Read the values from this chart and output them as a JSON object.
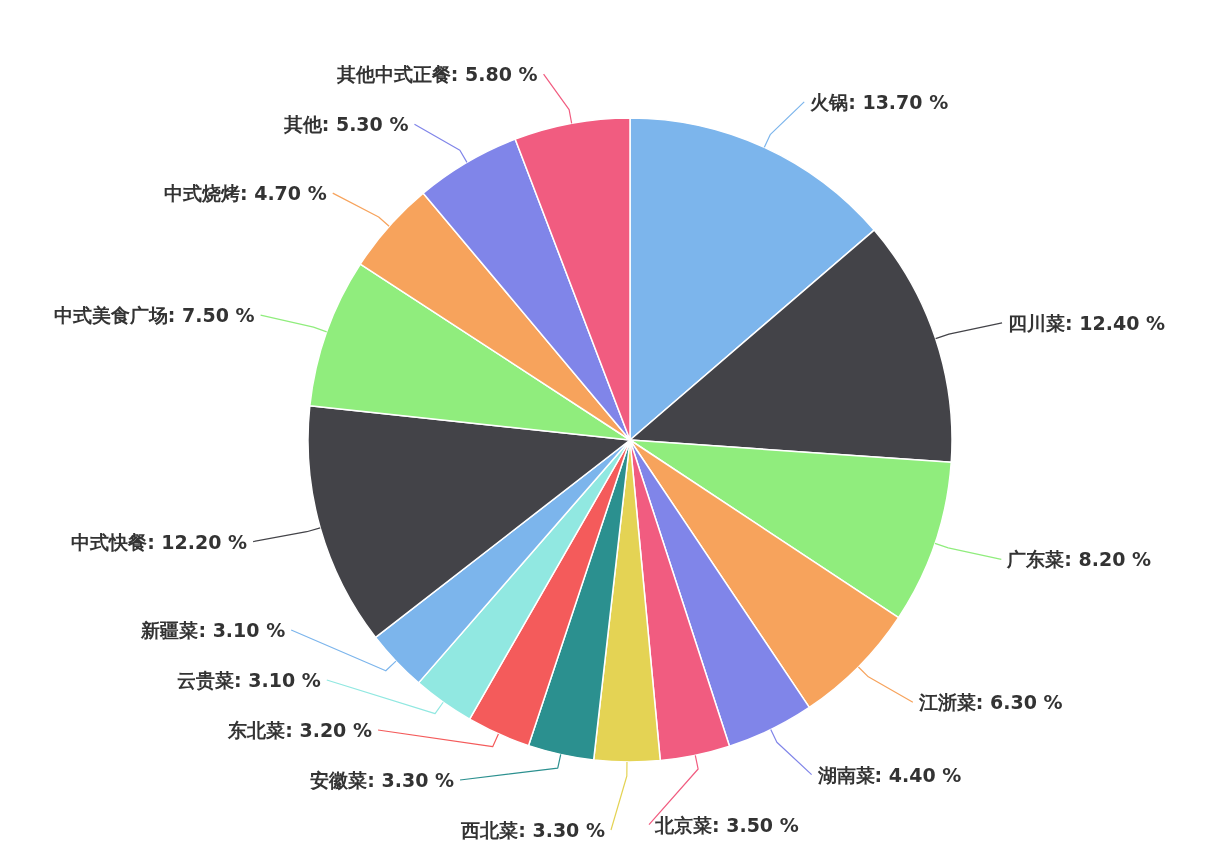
{
  "chart_data": {
    "type": "pie",
    "categories": [
      "火锅",
      "四川菜",
      "广东菜",
      "江浙菜",
      "湖南菜",
      "北京菜",
      "西北菜",
      "安徽菜",
      "东北菜",
      "云贵菜",
      "新疆菜",
      "中式快餐",
      "中式美食广场",
      "中式烧烤",
      "其他",
      "其他中式正餐"
    ],
    "values": [
      13.7,
      12.4,
      8.2,
      6.3,
      4.4,
      3.5,
      3.3,
      3.3,
      3.2,
      3.1,
      3.1,
      12.2,
      7.5,
      4.7,
      5.3,
      5.8
    ],
    "value_labels": [
      "13.70 %",
      "12.40 %",
      "8.20 %",
      "6.30 %",
      "4.40 %",
      "3.50 %",
      "3.30 %",
      "3.30 %",
      "3.20 %",
      "3.10 %",
      "3.10 %",
      "12.20 %",
      "7.50 %",
      "4.70 %",
      "5.30 %",
      "5.80 %"
    ],
    "colors": [
      "#7cb5ec",
      "#434348",
      "#90ed7d",
      "#f7a35c",
      "#8085e9",
      "#f15c80",
      "#e4d354",
      "#2b908f",
      "#f45b5b",
      "#91e8e1",
      "#7cb5ec",
      "#434348",
      "#90ed7d",
      "#f7a35c",
      "#8085e9",
      "#f15c80"
    ]
  }
}
